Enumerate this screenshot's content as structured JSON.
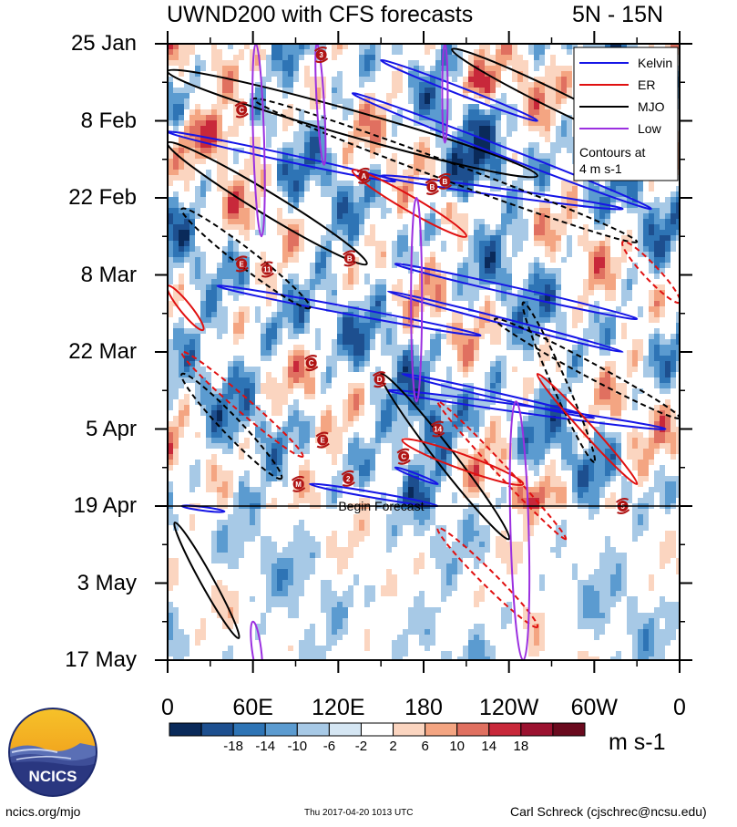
{
  "title": {
    "main": "UWND200 with CFS forecasts",
    "region": "5N - 15N"
  },
  "chart_data": {
    "type": "heatmap",
    "title": "UWND200 with CFS forecasts",
    "subtitle": "5N - 15N",
    "x_ticks": [
      "0",
      "60E",
      "120E",
      "180",
      "120W",
      "60W",
      "0"
    ],
    "x_tick_degrees": [
      0,
      60,
      120,
      180,
      240,
      300,
      360
    ],
    "y_ticks": [
      "25 Jan",
      "8 Feb",
      "22 Feb",
      "8 Mar",
      "22 Mar",
      "5 Apr",
      "19 Apr",
      "3 May",
      "17 May"
    ],
    "y_tick_days": [
      0,
      14,
      28,
      42,
      56,
      70,
      84,
      98,
      112
    ],
    "units": "m s-1",
    "colorbar": {
      "labels": [
        "-18",
        "-14",
        "-10",
        "-6",
        "-2",
        "2",
        "6",
        "10",
        "14",
        "18"
      ],
      "colors": [
        "#0a2a5a",
        "#1d4f8f",
        "#2e74b5",
        "#5b9bd0",
        "#a7c9e6",
        "#d5e6f3",
        "#ffffff",
        "#fbd5c0",
        "#f4a582",
        "#e07060",
        "#c8283a",
        "#9b1230",
        "#6a0a1e"
      ]
    },
    "legend": {
      "placement": "top-right",
      "entries": [
        {
          "name": "Kelvin",
          "color": "#1515e6"
        },
        {
          "name": "ER",
          "color": "#e01010"
        },
        {
          "name": "MJO",
          "color": "#000000"
        },
        {
          "name": "Low",
          "color": "#9b30e0"
        }
      ],
      "note": "Contours at\n4 m s-1"
    },
    "annotation": {
      "text": "Begin Forecast",
      "day": 84
    },
    "storms": [
      {
        "label": "3",
        "lon": 108,
        "day": 2
      },
      {
        "label": "C",
        "lon": 52,
        "day": 12
      },
      {
        "label": "A",
        "lon": 138,
        "day": 24
      },
      {
        "label": "B",
        "lon": 186,
        "day": 26
      },
      {
        "label": "B",
        "lon": 195,
        "day": 25
      },
      {
        "label": "E",
        "lon": 52,
        "day": 40
      },
      {
        "label": "11",
        "lon": 70,
        "day": 41
      },
      {
        "label": "B",
        "lon": 128,
        "day": 39
      },
      {
        "label": "C",
        "lon": 101,
        "day": 58
      },
      {
        "label": "D",
        "lon": 149,
        "day": 61
      },
      {
        "label": "14",
        "lon": 190,
        "day": 70
      },
      {
        "label": "E",
        "lon": 109,
        "day": 72
      },
      {
        "label": "C",
        "lon": 166,
        "day": 75
      },
      {
        "label": "M",
        "lon": 92,
        "day": 80
      },
      {
        "label": "2",
        "lon": 127,
        "day": 79
      },
      {
        "label": "5",
        "lon": 320,
        "day": 84
      }
    ]
  },
  "logo": {
    "text": "NCICS"
  },
  "footer": {
    "left": "ncics.org/mjo",
    "middle": "Thu 2017-04-20 1013 UTC",
    "right": "Carl Schreck (cjschrec@ncsu.edu)"
  }
}
